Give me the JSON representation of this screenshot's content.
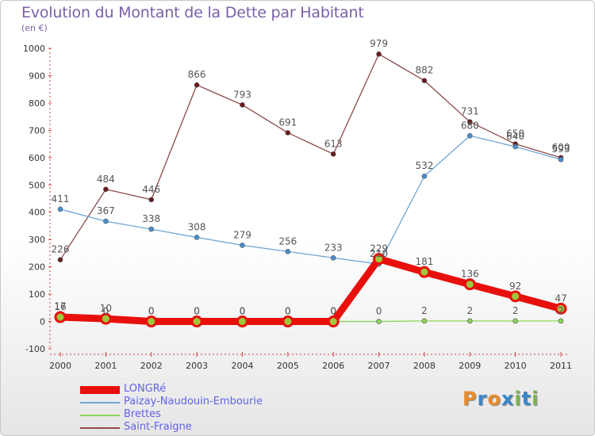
{
  "header": {
    "title": "Evolution du Montant de la Dette par Habitant",
    "subtitle": "(en €)"
  },
  "brand": {
    "text": "Proxiti",
    "letters": [
      "P",
      "r",
      "o",
      "x",
      "i",
      "t",
      "i"
    ],
    "colors": [
      "#e98a2c",
      "#3a86c8",
      "#e98a2c",
      "#3a86c8",
      "#7ab648",
      "#3a86c8",
      "#7ab648"
    ]
  },
  "chart_data": {
    "type": "line",
    "x": [
      "2000",
      "2001",
      "2002",
      "2003",
      "2004",
      "2005",
      "2006",
      "2007",
      "2008",
      "2009",
      "2010",
      "2011"
    ],
    "ylim": [
      -100,
      1000
    ],
    "yticks": [
      "-100",
      "0",
      "100",
      "200",
      "300",
      "400",
      "500",
      "600",
      "700",
      "800",
      "900",
      "1000"
    ],
    "grid": false,
    "legend_position": "bottom-left",
    "series": [
      {
        "name": "LONGRé",
        "color": "#e8100c",
        "marker_fill": "#9ec73d",
        "values": [
          16,
          10,
          0,
          0,
          0,
          0,
          0,
          229,
          181,
          136,
          92,
          47
        ],
        "labels": [
          "16",
          "10",
          "0",
          "0",
          "0",
          "0",
          "0",
          "229",
          "181",
          "136",
          "92",
          "47"
        ]
      },
      {
        "name": "Paizay-Naudouin-Embourie",
        "color": "#6fa6d6",
        "marker_fill": "#4a8ed0",
        "values": [
          411,
          367,
          338,
          308,
          279,
          256,
          233,
          210,
          532,
          680,
          640,
          593
        ],
        "labels": [
          "411",
          "367",
          "338",
          "308",
          "279",
          "256",
          "233",
          "210",
          "532",
          "680",
          "640",
          "593"
        ]
      },
      {
        "name": "Brettes",
        "color": "#8ed35a",
        "marker_fill": "#8ed35a",
        "values": [
          17,
          0,
          0,
          0,
          0,
          0,
          0,
          0,
          2,
          2,
          2,
          2
        ],
        "labels": [
          "17",
          "0",
          "0",
          "0",
          "0",
          "0",
          "0",
          "0",
          "2",
          "2",
          "2",
          "2"
        ]
      },
      {
        "name": "Saint-Fraigne",
        "color": "#8b4a4a",
        "marker_fill": "#6b1a1a",
        "values": [
          226,
          484,
          446,
          866,
          793,
          691,
          613,
          979,
          882,
          731,
          650,
          600
        ],
        "labels": [
          "226",
          "484",
          "446",
          "866",
          "793",
          "691",
          "613",
          "979",
          "882",
          "731",
          "650",
          "600"
        ]
      }
    ]
  }
}
